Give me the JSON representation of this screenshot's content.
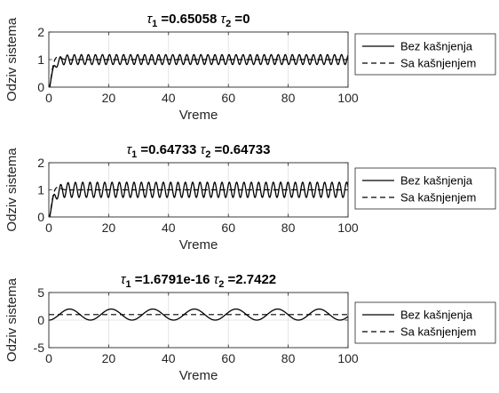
{
  "chart_data": [
    {
      "type": "line",
      "title_parts": [
        {
          "text": "τ",
          "italic": true
        },
        {
          "text": "1",
          "sub": true
        },
        {
          "text": " =0.65058 "
        },
        {
          "text": "τ",
          "italic": true
        },
        {
          "text": "2",
          "sub": true
        },
        {
          "text": " =0"
        }
      ],
      "xlabel": "Vreme",
      "ylabel": "Odziv sistema",
      "xlim": [
        0,
        100
      ],
      "ylim": [
        0,
        2
      ],
      "xticks": [
        0,
        20,
        40,
        60,
        80,
        100
      ],
      "xtick_labels": [
        "0",
        "20",
        "40",
        "60",
        "80",
        "100"
      ],
      "yticks": [
        0,
        1,
        2
      ],
      "ytick_labels": [
        "0",
        "1",
        "2"
      ],
      "grid": true,
      "legend_position": "outside-right",
      "signal": {
        "kind": "damped_oscillation",
        "steady": 1,
        "amplitude": 0.18,
        "period": 2.35,
        "rise_time": 1.2,
        "initial_overshoot": 0.15
      },
      "series": [
        {
          "name": "Bez kašnjenja",
          "style": "solid",
          "color": "#000000",
          "description": "sustained oscillation ≈ 0.82 – 1.18 after t≈5"
        },
        {
          "name": "Sa kašnjenjem",
          "style": "dashed",
          "color": "#000000",
          "description": "step response settling at 1.0"
        }
      ]
    },
    {
      "type": "line",
      "title_parts": [
        {
          "text": "τ",
          "italic": true
        },
        {
          "text": "1",
          "sub": true
        },
        {
          "text": " =0.64733 "
        },
        {
          "text": "τ",
          "italic": true
        },
        {
          "text": "2",
          "sub": true
        },
        {
          "text": " =0.64733"
        }
      ],
      "xlabel": "Vreme",
      "ylabel": "Odziv sistema",
      "xlim": [
        0,
        100
      ],
      "ylim": [
        0,
        2
      ],
      "xticks": [
        0,
        20,
        40,
        60,
        80,
        100
      ],
      "xtick_labels": [
        "0",
        "20",
        "40",
        "60",
        "80",
        "100"
      ],
      "yticks": [
        0,
        1,
        2
      ],
      "ytick_labels": [
        "0",
        "1",
        "2"
      ],
      "grid": true,
      "legend_position": "outside-right",
      "signal": {
        "kind": "damped_oscillation",
        "steady": 1,
        "amplitude": 0.28,
        "period": 2.45,
        "rise_time": 1.2,
        "initial_overshoot": 0.2
      },
      "series": [
        {
          "name": "Bez kašnjenja",
          "style": "solid",
          "color": "#000000",
          "description": "sustained oscillation ≈ 0.72 – 1.28 after t≈5"
        },
        {
          "name": "Sa kašnjenjem",
          "style": "dashed",
          "color": "#000000",
          "description": "step response settling at 1.0"
        }
      ]
    },
    {
      "type": "line",
      "title_parts": [
        {
          "text": "τ",
          "italic": true
        },
        {
          "text": "1",
          "sub": true
        },
        {
          "text": " =1.6791e-16 "
        },
        {
          "text": "τ",
          "italic": true
        },
        {
          "text": "2",
          "sub": true
        },
        {
          "text": " =2.7422"
        }
      ],
      "xlabel": "Vreme",
      "ylabel": "Odziv sistema",
      "xlim": [
        0,
        100
      ],
      "ylim": [
        -5,
        5
      ],
      "xticks": [
        0,
        20,
        40,
        60,
        80,
        100
      ],
      "xtick_labels": [
        "0",
        "20",
        "40",
        "60",
        "80",
        "100"
      ],
      "yticks": [
        -5,
        0,
        5
      ],
      "ytick_labels": [
        "-5",
        "0",
        "5"
      ],
      "grid": true,
      "legend_position": "outside-right",
      "signal": {
        "kind": "sinusoid",
        "steady": 1,
        "amplitude": 1,
        "period": 13.9,
        "phase_start_min": true
      },
      "series": [
        {
          "name": "Bez kašnjenja",
          "style": "solid",
          "color": "#000000",
          "description": "oscillation between 0 and 2"
        },
        {
          "name": "Sa kašnjenjem",
          "style": "dashed",
          "color": "#000000",
          "description": "constant at 1.0"
        }
      ]
    }
  ]
}
